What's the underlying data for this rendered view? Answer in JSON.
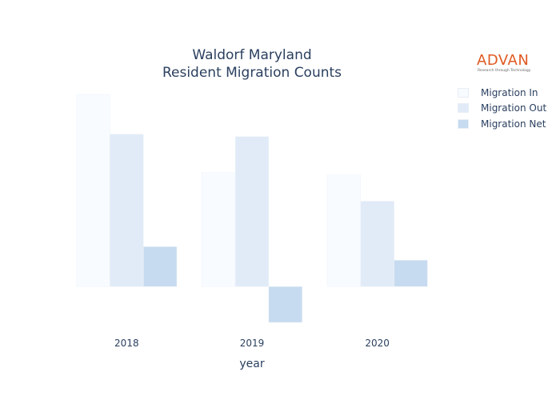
{
  "brand": {
    "name": "ADVAN",
    "tagline": "Research through Technology",
    "color": "#e05a22"
  },
  "chart_data": {
    "type": "bar",
    "title": [
      "Waldorf Maryland",
      "Resident Migration Counts"
    ],
    "xlabel": "year",
    "ylabel": "",
    "categories": [
      "2018",
      "2019",
      "2020"
    ],
    "series": [
      {
        "name": "Migration In",
        "values": [
          2410,
          1430,
          1400
        ],
        "color": "#f8fbff"
      },
      {
        "name": "Migration Out",
        "values": [
          1910,
          1880,
          1070
        ],
        "color": "#e1ebf7"
      },
      {
        "name": "Migration Net",
        "values": [
          500,
          -450,
          330
        ],
        "color": "#c7dbf0"
      }
    ],
    "ylim": [
      -480,
      2450
    ],
    "grid": false,
    "legend_position": "top-right",
    "y_tick_labels_shown": false
  }
}
